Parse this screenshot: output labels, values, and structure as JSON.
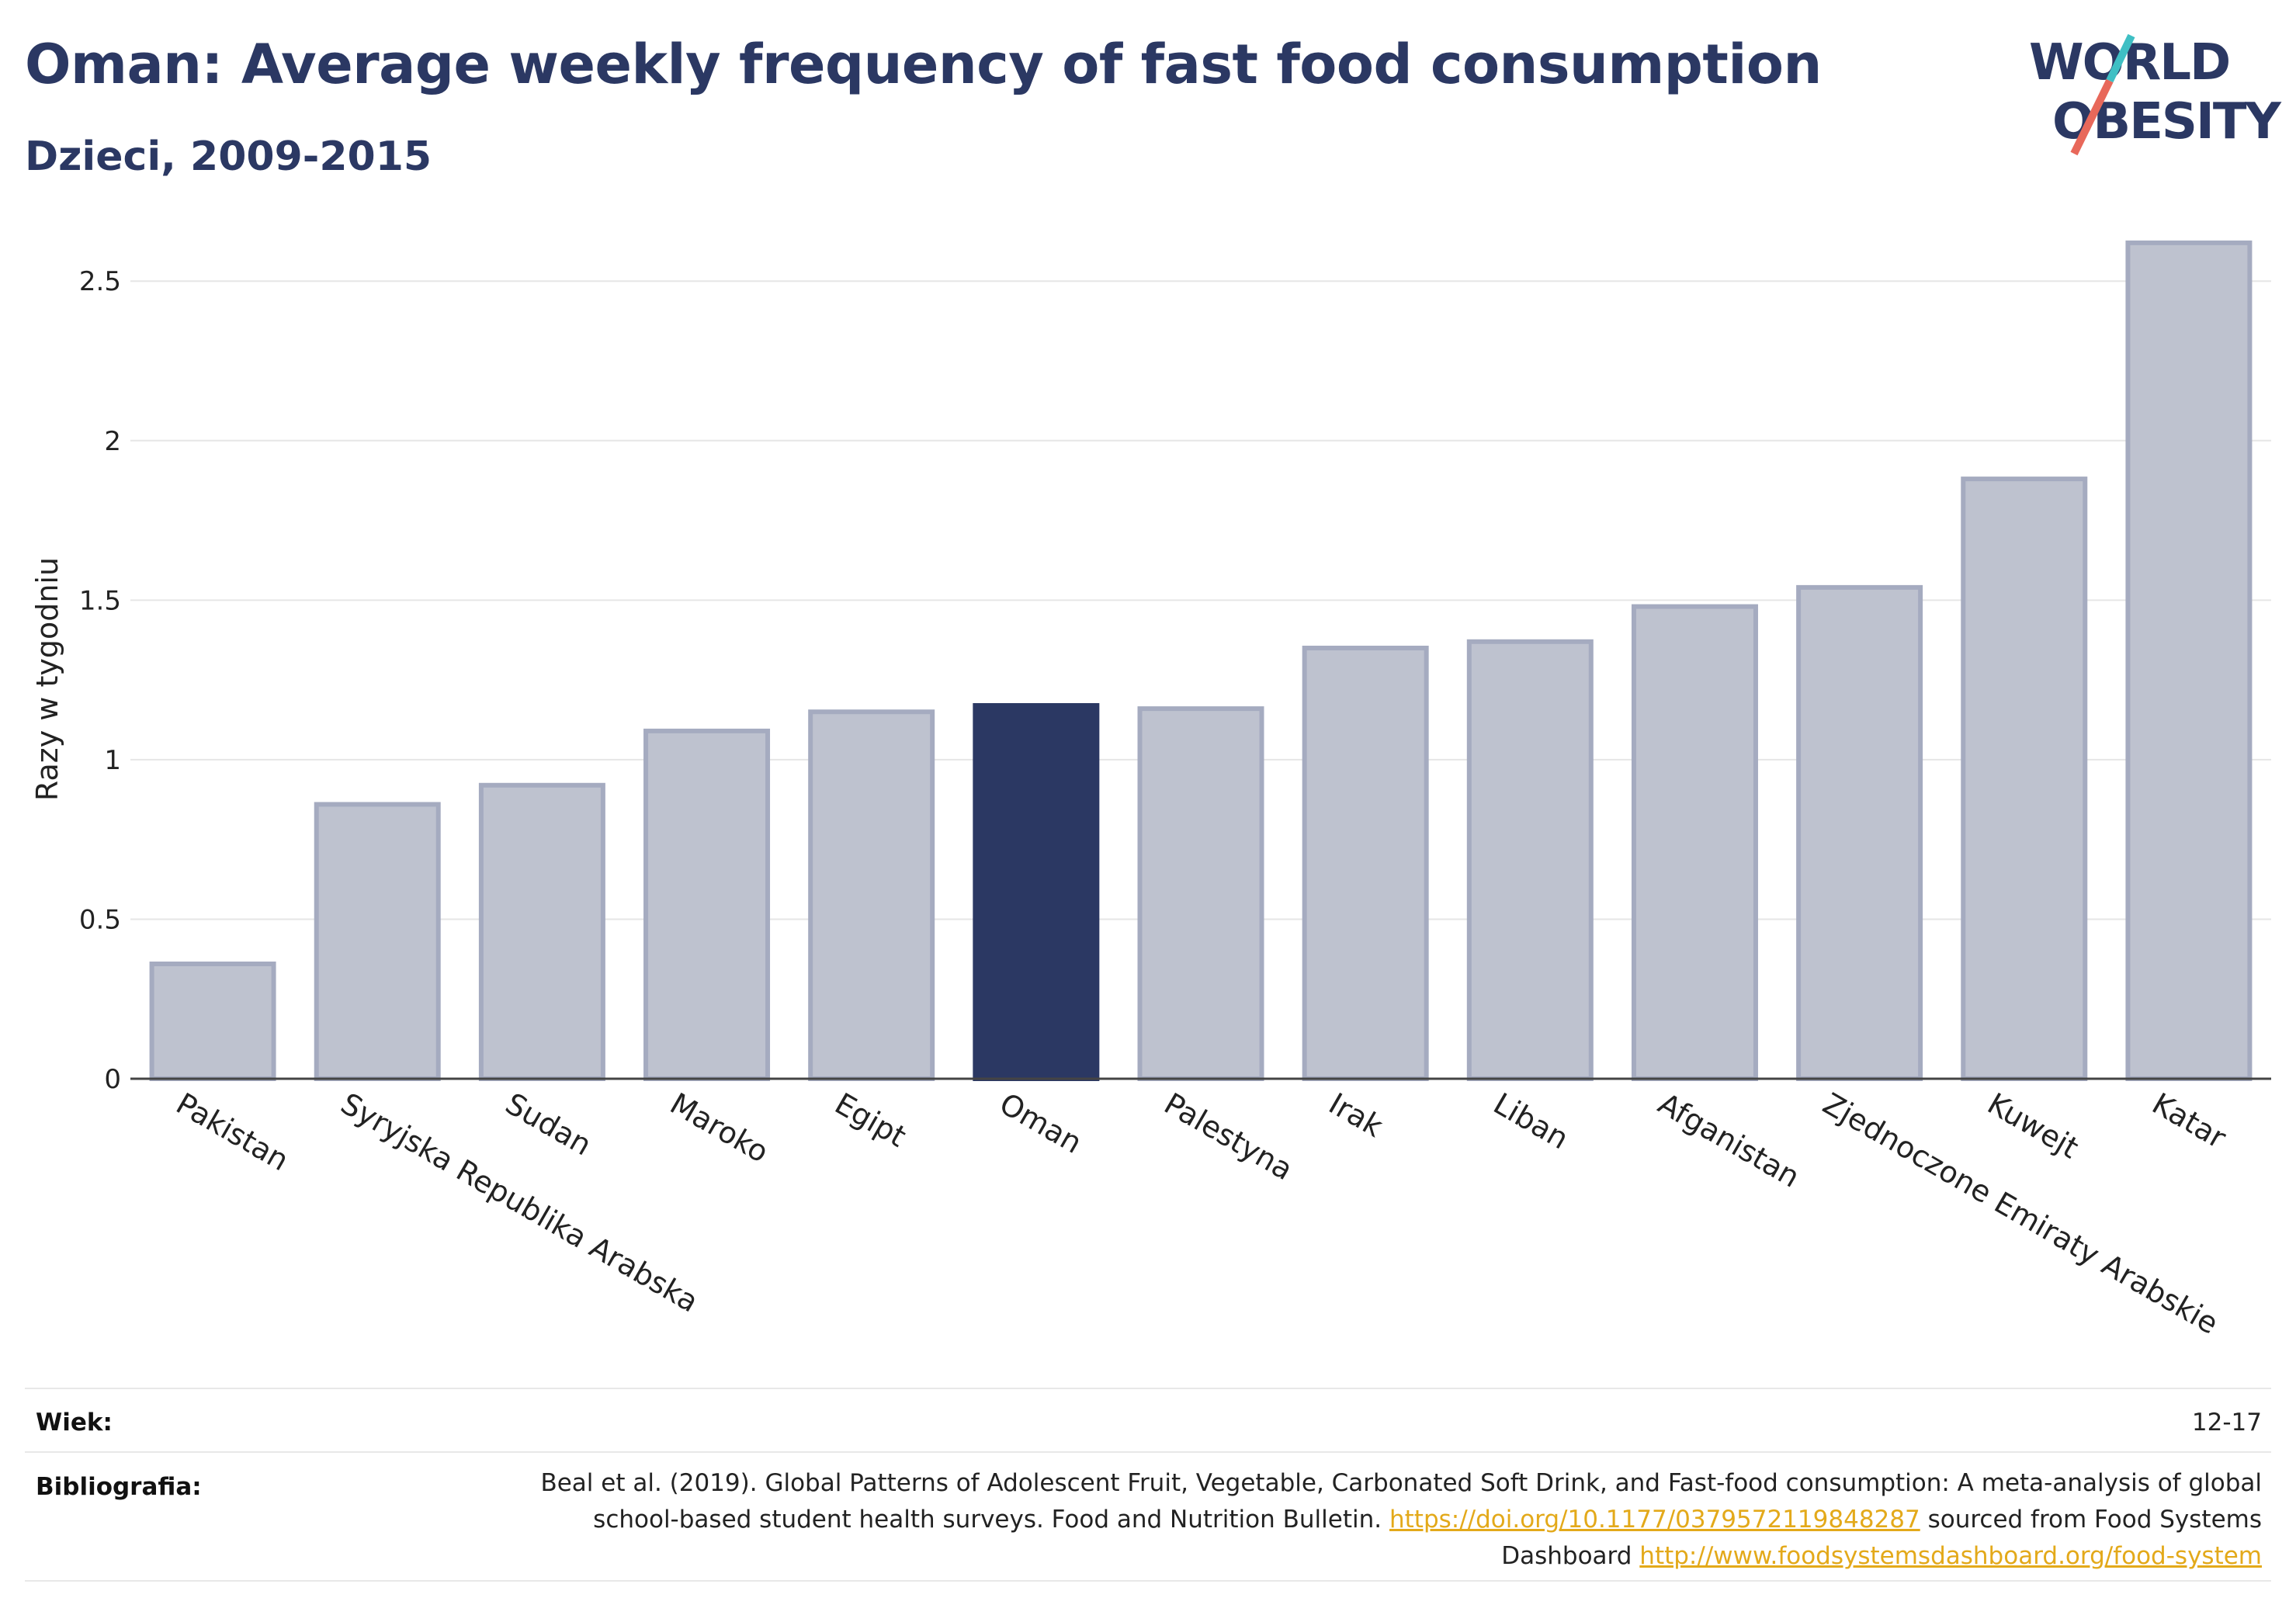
{
  "header": {
    "title": "Oman: Average weekly frequency of fast food consumption",
    "subtitle": "Dzieci, 2009-2015"
  },
  "logo": {
    "line1": "WORLD",
    "line2": "OBESITY"
  },
  "colors": {
    "highlight": "#2b3863",
    "bar_fill": "#bec2cf",
    "bar_stroke": "#a5abc0",
    "accent_teal": "#3fbfc4",
    "accent_red": "#e8685a",
    "link": "#e3a91a"
  },
  "chart_data": {
    "type": "bar",
    "categories": [
      "Pakistan",
      "Syryjska Republika Arabska",
      "Sudan",
      "Maroko",
      "Egipt",
      "Oman",
      "Palestyna",
      "Irak",
      "Liban",
      "Afganistan",
      "Zjednoczone Emiraty Arabskie",
      "Kuwejt",
      "Katar"
    ],
    "values": [
      0.36,
      0.86,
      0.92,
      1.09,
      1.15,
      1.17,
      1.16,
      1.35,
      1.37,
      1.48,
      1.54,
      1.88,
      2.62
    ],
    "highlight": "Oman",
    "ylabel": "Razy w tygodniu",
    "ylim": [
      0,
      2.7
    ],
    "yticks": [
      0,
      0.5,
      1,
      1.5,
      2,
      2.5
    ],
    "ytick_labels": [
      "0",
      "0.5",
      "1",
      "1.5",
      "2",
      "2.5"
    ],
    "grid": true
  },
  "footer": {
    "age_label": "Wiek:",
    "age_value": "12-17",
    "biblio_label": "Bibliografia:",
    "biblio_text_1": "Beal et al. (2019). Global Patterns of Adolescent Fruit, Vegetable, Carbonated Soft Drink, and Fast-food consumption: A meta-analysis of global school-based student health surveys. Food and Nutrition Bulletin.",
    "biblio_link_1": "https://doi.org/10.1177/0379572119848287",
    "biblio_text_2": "sourced from Food Systems Dashboard",
    "biblio_link_2": "http://www.foodsystemsdashboard.org/food-system"
  }
}
